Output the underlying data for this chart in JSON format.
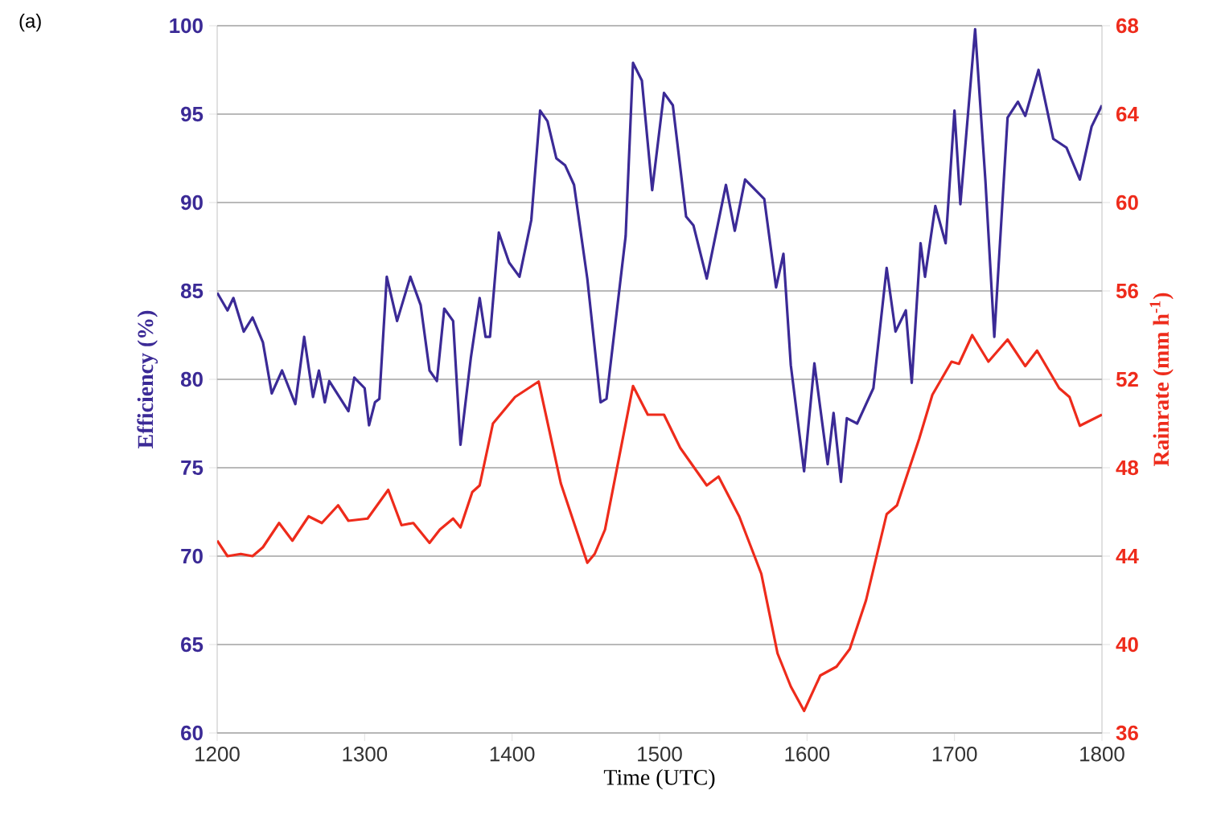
{
  "chart_data": {
    "type": "line",
    "xlabel": "Time (UTC)",
    "ylabel": "Efficiency (%)",
    "y2label": "Rainrate (mm h$^{-1}$)",
    "annotations": [
      "(a)"
    ],
    "xlim": [
      1200,
      1800
    ],
    "xticks": [
      1200,
      1300,
      1400,
      1500,
      1600,
      1700,
      1800
    ],
    "ylim": [
      60,
      100
    ],
    "yticks": [
      60,
      65,
      70,
      75,
      80,
      85,
      90,
      95,
      100
    ],
    "y2lim": [
      36,
      68
    ],
    "y2ticks": [
      36,
      40,
      44,
      48,
      52,
      56,
      60,
      64,
      68
    ],
    "grid": "y",
    "marker": "none",
    "line_style": "solid",
    "series": [
      {
        "color": "#3b2a96",
        "x": [
          1200,
          1207,
          1211,
          1218,
          1224,
          1231,
          1237,
          1244,
          1253,
          1259,
          1265,
          1269,
          1273,
          1276,
          1289,
          1293,
          1300,
          1303,
          1307,
          1310,
          1315,
          1322,
          1331,
          1338,
          1344,
          1349,
          1354,
          1360,
          1365,
          1372,
          1378,
          1382,
          1385,
          1391,
          1398,
          1405,
          1413,
          1419,
          1424,
          1430,
          1436,
          1442,
          1451,
          1460,
          1464,
          1477,
          1482,
          1488,
          1495,
          1503,
          1509,
          1518,
          1523,
          1532,
          1545,
          1551,
          1558,
          1571,
          1579,
          1584,
          1589,
          1598,
          1605,
          1614,
          1618,
          1623,
          1627,
          1634,
          1645,
          1654,
          1660,
          1667,
          1671,
          1677,
          1680,
          1687,
          1694,
          1700,
          1704,
          1714,
          1721,
          1727,
          1736,
          1743,
          1748,
          1757,
          1767,
          1776,
          1785,
          1793,
          1800
        ],
        "values": [
          84.9,
          83.9,
          84.6,
          82.7,
          83.5,
          82.1,
          79.2,
          80.5,
          78.6,
          82.4,
          79.0,
          80.5,
          78.7,
          79.9,
          78.2,
          80.1,
          79.5,
          77.4,
          78.7,
          78.9,
          85.8,
          83.3,
          85.8,
          84.2,
          80.5,
          79.9,
          84.0,
          83.3,
          76.3,
          81.2,
          84.6,
          82.4,
          82.4,
          88.3,
          86.6,
          85.8,
          89.0,
          95.2,
          94.6,
          92.5,
          92.1,
          91.0,
          85.7,
          78.7,
          78.9,
          88.1,
          97.9,
          96.9,
          90.7,
          96.2,
          95.5,
          89.2,
          88.7,
          85.7,
          91.0,
          88.4,
          91.3,
          90.2,
          85.2,
          87.1,
          80.8,
          74.8,
          80.9,
          75.2,
          78.1,
          74.2,
          77.8,
          77.5,
          79.5,
          86.3,
          82.7,
          83.9,
          79.8,
          87.7,
          85.8,
          89.8,
          87.7,
          95.2,
          89.9,
          99.8,
          91.2,
          82.4,
          94.8,
          95.7,
          94.9,
          97.5,
          93.6,
          93.1,
          91.3,
          94.3,
          95.5
        ]
      },
      {
        "color": "#ee2b1b",
        "axis": "y2",
        "x": [
          1200,
          1207,
          1216,
          1224,
          1231,
          1242,
          1251,
          1262,
          1271,
          1282,
          1289,
          1302,
          1316,
          1325,
          1333,
          1344,
          1351,
          1360,
          1365,
          1373,
          1378,
          1387,
          1402,
          1418,
          1433,
          1451,
          1456,
          1463,
          1482,
          1492,
          1503,
          1514,
          1532,
          1540,
          1554,
          1569,
          1580,
          1589,
          1598,
          1609,
          1620,
          1629,
          1640,
          1654,
          1661,
          1676,
          1685,
          1698,
          1703,
          1712,
          1723,
          1736,
          1748,
          1756,
          1771,
          1778,
          1785,
          1797,
          1800
        ],
        "values": [
          44.7,
          44.0,
          44.1,
          44.0,
          44.4,
          45.5,
          44.7,
          45.8,
          45.5,
          46.3,
          45.6,
          45.7,
          47.0,
          45.4,
          45.5,
          44.6,
          45.2,
          45.7,
          45.3,
          46.9,
          47.2,
          50.0,
          51.2,
          51.9,
          47.3,
          43.7,
          44.1,
          45.2,
          51.7,
          50.4,
          50.4,
          48.9,
          47.2,
          47.6,
          45.8,
          43.2,
          39.6,
          38.1,
          37.0,
          38.6,
          39.0,
          39.8,
          42.0,
          45.9,
          46.3,
          49.3,
          51.3,
          52.8,
          52.7,
          54.0,
          52.8,
          53.8,
          52.6,
          53.3,
          51.6,
          51.2,
          49.9,
          50.3,
          50.4
        ]
      }
    ]
  }
}
